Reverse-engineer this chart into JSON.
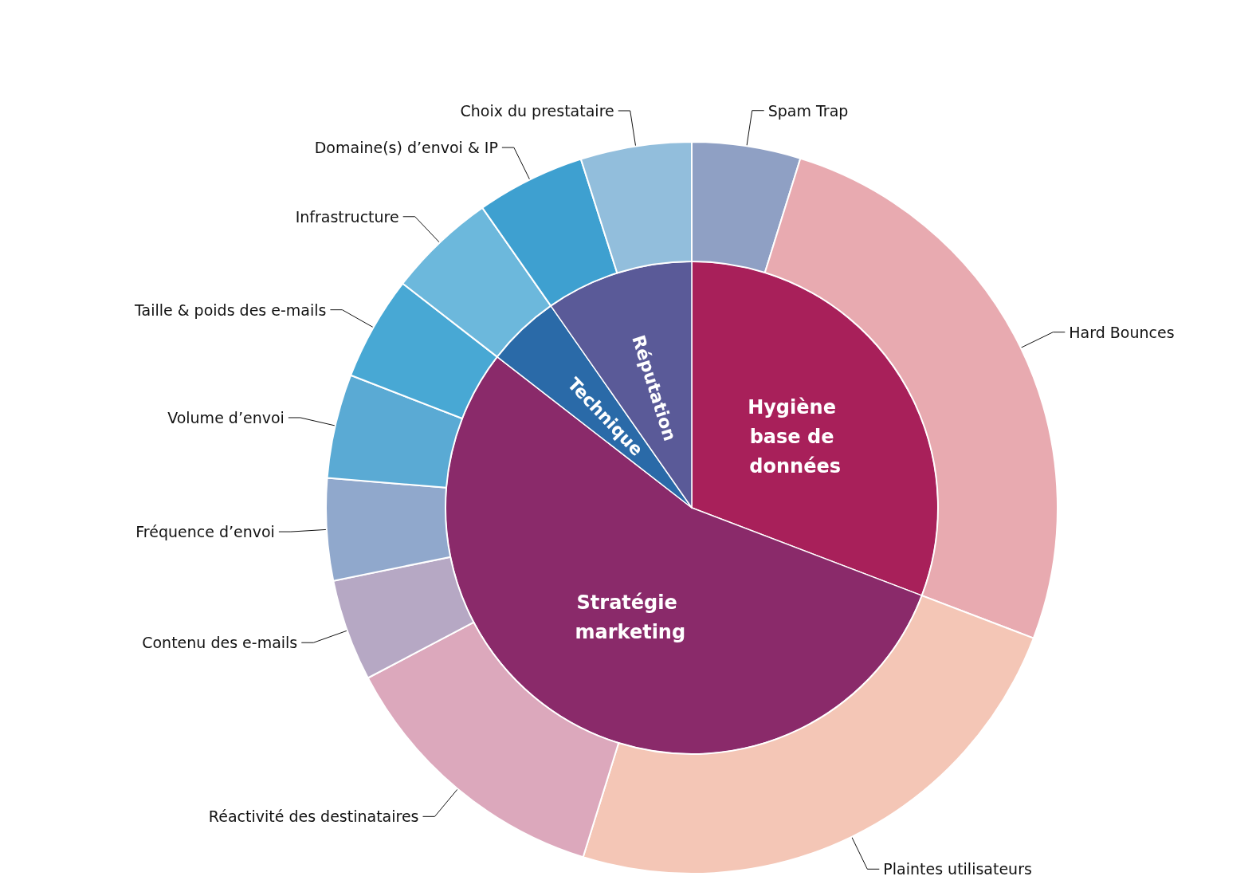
{
  "chart_data": [
    {
      "type": "pie",
      "categories": [
        "Hygiène base de données",
        "Stratégie marketing",
        "Technique",
        "Réputation"
      ],
      "values": [
        30.8,
        54.7,
        4.8,
        9.7
      ],
      "colors": [
        "#a8205a",
        "#8a2a6a",
        "#2a6aa8",
        "#5a5a98"
      ]
    },
    {
      "type": "donut",
      "categories": [
        "Spam Trap",
        "Hard Bounces",
        "Plaintes utilisateurs",
        "Réactivité des destinataires",
        "Contenu des e-mails",
        "Fréquence d’envoi",
        "Volume d’envoi",
        "Taille & poids des e-mails",
        "Infrastructure",
        "Domaine(s) d’envoi & IP",
        "Choix du prestataire"
      ],
      "values": [
        4.8,
        26.0,
        24.0,
        12.5,
        4.5,
        4.5,
        4.6,
        4.6,
        4.8,
        4.8,
        4.9
      ],
      "colors": [
        "#8fa0c4",
        "#e8aab0",
        "#f4c6b6",
        "#dca8bc",
        "#b6a8c4",
        "#90a8cc",
        "#5aaad4",
        "#48a8d4",
        "#6cb8dc",
        "#3ea0d0",
        "#92bedc"
      ]
    }
  ]
}
